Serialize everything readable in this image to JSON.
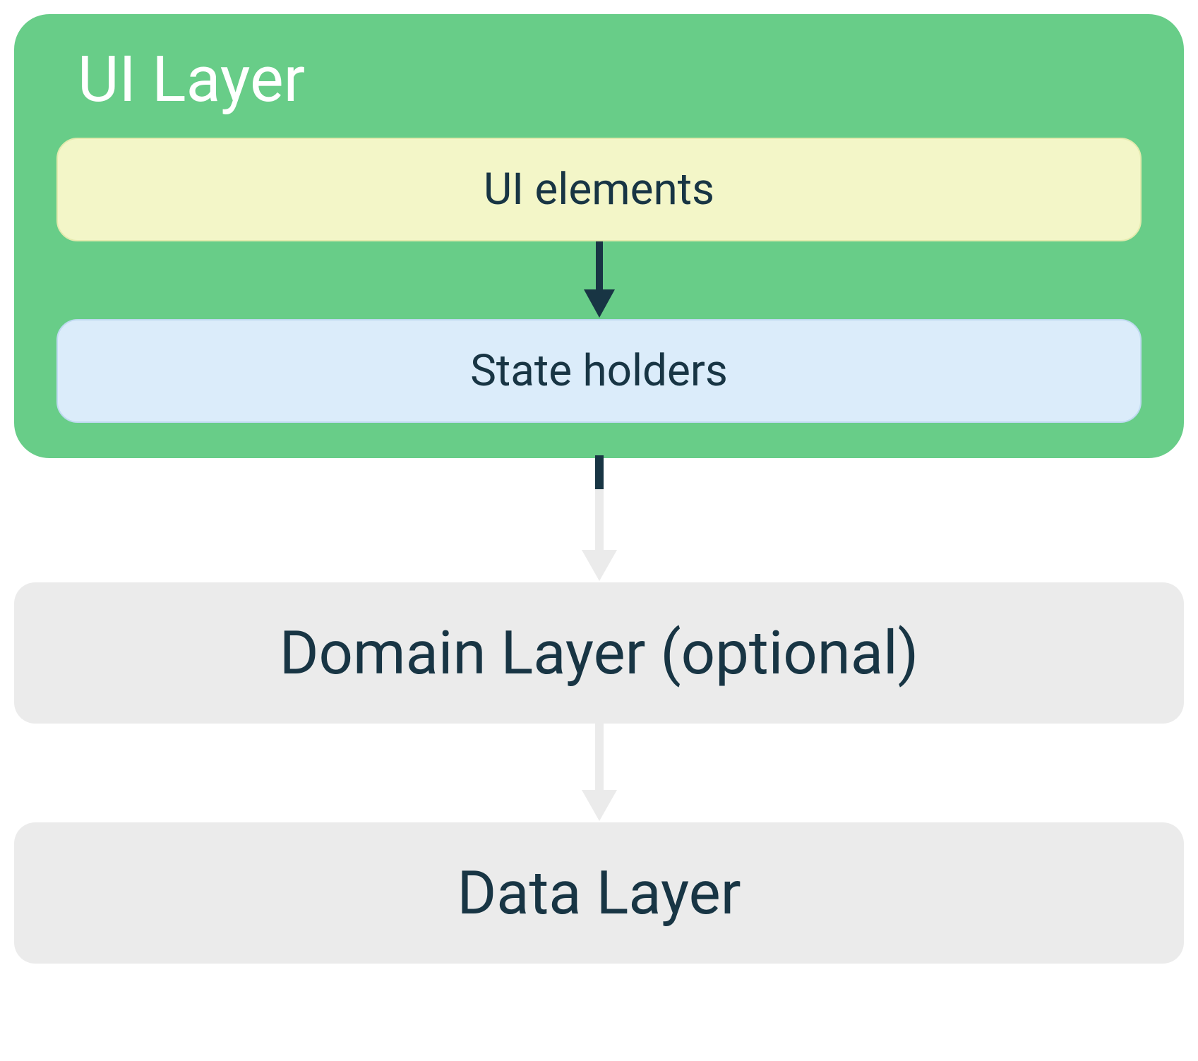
{
  "diagram": {
    "type": "flowchart",
    "background_color": "#ffffff",
    "text_color": "#183544",
    "ui_layer": {
      "title": "UI Layer",
      "title_color": "#ffffff",
      "title_fontsize": 90,
      "background_color": "#68cd88",
      "border_radius": 50,
      "ui_elements_box": {
        "label": "UI elements",
        "background_color": "#f3f6c8",
        "border_color": "#e3eaae",
        "text_color": "#183544",
        "fontsize": 62,
        "border_radius": 30
      },
      "state_holders_box": {
        "label": "State holders",
        "background_color": "#dbecfa",
        "border_color": "#bfdaf0",
        "text_color": "#183544",
        "fontsize": 62,
        "border_radius": 30
      },
      "inner_arrow": {
        "color": "#183544",
        "stroke_width": 10,
        "height": 110
      }
    },
    "domain_layer": {
      "label": "Domain Layer (optional)",
      "background_color": "#ebebeb",
      "text_color": "#183544",
      "fontsize": 85,
      "border_radius": 30
    },
    "data_layer": {
      "label": "Data Layer",
      "background_color": "#ebebeb",
      "text_color": "#183544",
      "fontsize": 85,
      "border_radius": 30
    },
    "outer_arrows": {
      "color": "#ebebeb",
      "stroke_width": 12,
      "height_1": 180,
      "height_2": 140
    }
  }
}
